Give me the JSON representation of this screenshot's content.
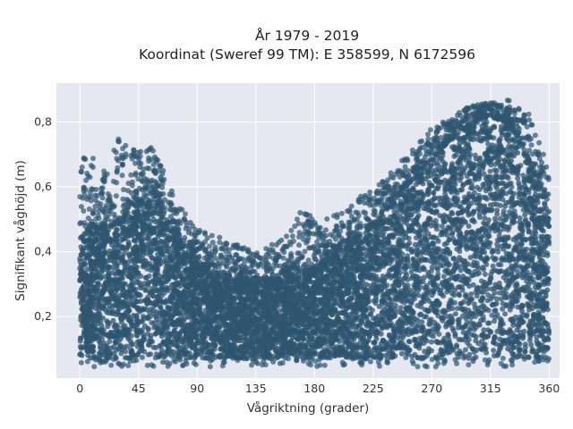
{
  "chart_data": {
    "type": "scatter",
    "title": "År 1979 - 2019",
    "subtitle": "Koordinat (Sweref 99 TM): E 358599, N 6172596",
    "xlabel": "Vågriktning (grader)",
    "ylabel": "Signifikant våghöjd (m)",
    "xlim": [
      -18,
      368
    ],
    "ylim": [
      0.01,
      0.92
    ],
    "x_ticks": [
      0,
      45,
      90,
      135,
      180,
      225,
      270,
      315,
      360
    ],
    "x_tick_labels": [
      "0",
      "45",
      "90",
      "135",
      "180",
      "225",
      "270",
      "315",
      "360"
    ],
    "y_ticks": [
      0.2,
      0.4,
      0.6,
      0.8
    ],
    "y_tick_labels": [
      "0,2",
      "0,4",
      "0,6",
      "0,8"
    ],
    "grid": true,
    "legend": "none",
    "marker_color": "#2f5670",
    "background_color": "#e5e8f1",
    "x_range": [
      0,
      360
    ],
    "lower_envelope": [
      [
        0,
        0.07
      ],
      [
        360,
        0.07
      ]
    ],
    "upper_envelope": [
      [
        0,
        0.72
      ],
      [
        10,
        0.7
      ],
      [
        20,
        0.65
      ],
      [
        30,
        0.77
      ],
      [
        45,
        0.71
      ],
      [
        55,
        0.73
      ],
      [
        62,
        0.67
      ],
      [
        75,
        0.55
      ],
      [
        90,
        0.47
      ],
      [
        110,
        0.44
      ],
      [
        135,
        0.4
      ],
      [
        155,
        0.44
      ],
      [
        170,
        0.53
      ],
      [
        185,
        0.5
      ],
      [
        200,
        0.52
      ],
      [
        215,
        0.58
      ],
      [
        225,
        0.6
      ],
      [
        240,
        0.65
      ],
      [
        255,
        0.72
      ],
      [
        270,
        0.78
      ],
      [
        285,
        0.82
      ],
      [
        300,
        0.85
      ],
      [
        315,
        0.86
      ],
      [
        330,
        0.87
      ],
      [
        345,
        0.83
      ],
      [
        355,
        0.72
      ],
      [
        360,
        0.62
      ]
    ],
    "dense_core_ceiling": [
      [
        0,
        0.45
      ],
      [
        20,
        0.48
      ],
      [
        45,
        0.55
      ],
      [
        60,
        0.55
      ],
      [
        80,
        0.4
      ],
      [
        100,
        0.33
      ],
      [
        135,
        0.3
      ],
      [
        170,
        0.33
      ],
      [
        200,
        0.4
      ],
      [
        225,
        0.48
      ],
      [
        255,
        0.62
      ],
      [
        285,
        0.75
      ],
      [
        310,
        0.82
      ],
      [
        330,
        0.8
      ],
      [
        350,
        0.62
      ],
      [
        360,
        0.5
      ]
    ]
  }
}
